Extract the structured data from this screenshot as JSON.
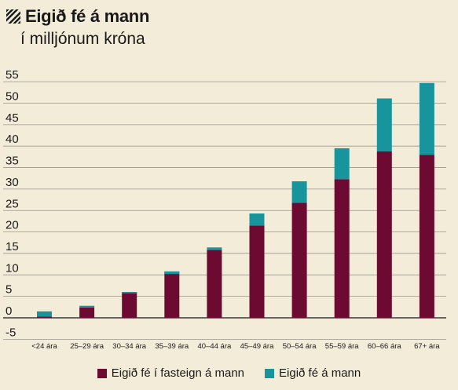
{
  "header": {
    "title": "Eigið fé á mann",
    "subtitle": "í milljónum króna"
  },
  "icons": {
    "title_marker": "hatch-icon"
  },
  "colors": {
    "background": "#f3ecd9",
    "series_property": "#6d0a32",
    "series_total": "#18959c",
    "grid": "#9a968c",
    "zero_line": "#3a3a3a"
  },
  "chart_data": {
    "type": "bar",
    "stacked": true,
    "title": "Eigið fé á mann",
    "subtitle": "í milljónum króna",
    "categories": [
      "<24 ára",
      "25–29 ára",
      "30–34 ára",
      "35–39 ára",
      "40–44 ára",
      "45–49 ára",
      "50–54 ára",
      "55–59 ára",
      "60–66 ára",
      "67+ ára"
    ],
    "series": [
      {
        "name": "Eigið fé í fasteign á mann",
        "values": [
          0.3,
          2.4,
          6.0,
          10.8,
          15.8,
          21.5,
          26.8,
          32.3,
          38.8,
          38.0
        ]
      },
      {
        "name": "Eigið fé á mann",
        "values": [
          1.2,
          0.4,
          -0.3,
          -0.6,
          0.6,
          2.8,
          5.0,
          7.2,
          12.3,
          16.7
        ]
      }
    ],
    "ylim": [
      -5,
      55
    ],
    "yticks": [
      -5,
      0,
      5,
      10,
      15,
      20,
      25,
      30,
      35,
      40,
      45,
      50,
      55
    ],
    "grid": true,
    "legend_position": "bottom-center"
  }
}
